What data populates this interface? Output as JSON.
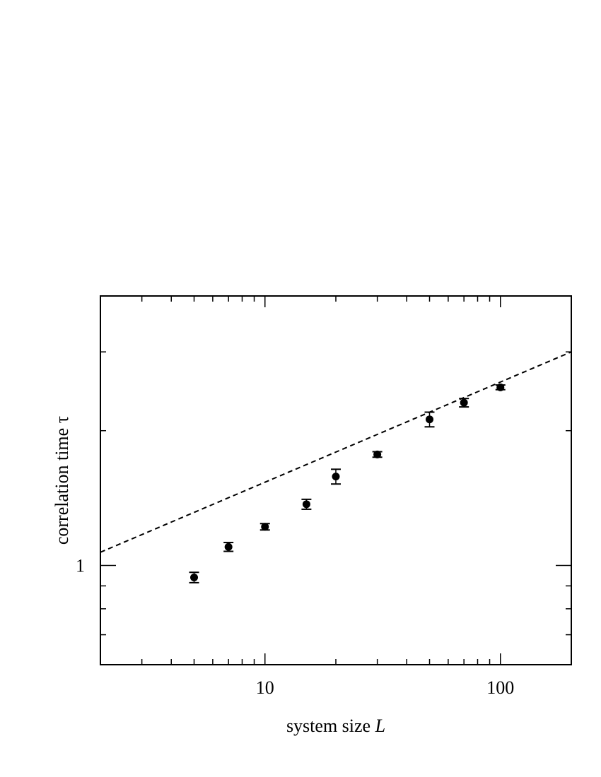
{
  "chart_data": {
    "type": "scatter",
    "xlabel": "system size",
    "xlabel_var": "L",
    "ylabel": "correlation time τ",
    "xscale": "log",
    "yscale": "log",
    "xlim": [
      2,
      200
    ],
    "ylim": [
      0.6,
      4
    ],
    "x_tick_labels": [
      {
        "value": 10,
        "label": "10"
      },
      {
        "value": 100,
        "label": "100"
      }
    ],
    "y_tick_labels": [
      {
        "value": 1,
        "label": "1"
      }
    ],
    "series": [
      {
        "points": [
          {
            "x": 5,
            "y": 0.94,
            "err": 0.025
          },
          {
            "x": 7,
            "y": 1.1,
            "err": 0.025
          },
          {
            "x": 10,
            "y": 1.22,
            "err": 0.02
          },
          {
            "x": 15,
            "y": 1.37,
            "err": 0.035
          },
          {
            "x": 20,
            "y": 1.58,
            "err": 0.06
          },
          {
            "x": 30,
            "y": 1.77,
            "err": 0.025
          },
          {
            "x": 50,
            "y": 2.12,
            "err": 0.08
          },
          {
            "x": 70,
            "y": 2.31,
            "err": 0.05
          },
          {
            "x": 100,
            "y": 2.5,
            "err": 0.03
          }
        ]
      }
    ],
    "fit_line": {
      "style": "dashed",
      "x": [
        2,
        200
      ],
      "y": [
        1.07,
        3.0
      ]
    },
    "grid": false,
    "legend": "none"
  }
}
